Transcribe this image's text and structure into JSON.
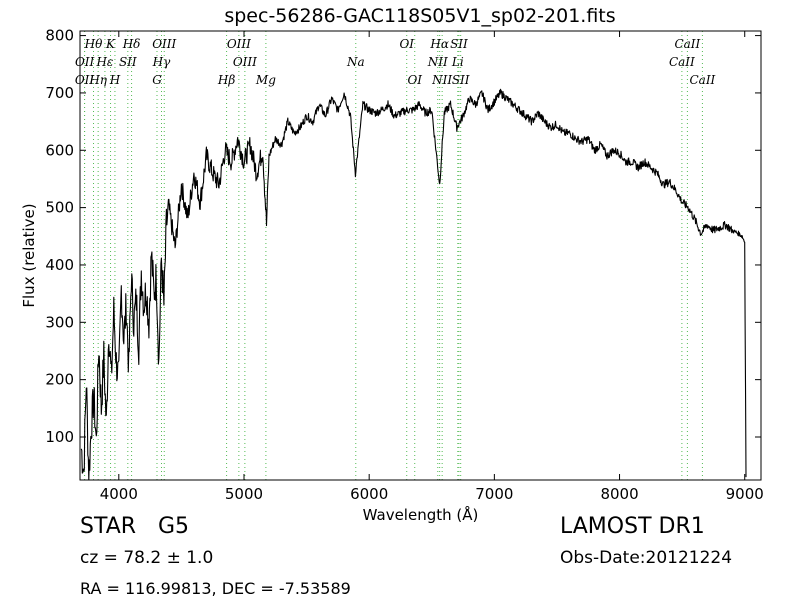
{
  "header": {
    "title": "spec-56286-GAC118S05V1_sp02-201.fits"
  },
  "info": {
    "object_class": "STAR",
    "subclass": "G5",
    "survey": "LAMOST DR1",
    "cz": "cz = 78.2 ± 1.0",
    "obs_date": "Obs-Date:20121224",
    "radec": "RA = 116.99813, DEC = -7.53589"
  },
  "colors": {
    "spectrum": "#000000",
    "line_markers": "#55bb55",
    "axes": "#000000"
  },
  "chart_data": {
    "type": "line",
    "title": "spec-56286-GAC118S05V1_sp02-201.fits",
    "xlabel": "Wavelength (Å)",
    "ylabel": "Flux (relative)",
    "xlim": [
      3690,
      9130
    ],
    "ylim": [
      25,
      808
    ],
    "xticks": [
      4000,
      5000,
      6000,
      7000,
      8000,
      9000
    ],
    "yticks": [
      100,
      200,
      300,
      400,
      500,
      600,
      700,
      800
    ],
    "grid": false,
    "legend": "none",
    "series": [
      {
        "x": [
          3700,
          3720,
          3740,
          3760,
          3780,
          3800,
          3820,
          3840,
          3860,
          3880,
          3900,
          3920,
          3940,
          3960,
          3980,
          4000,
          4020,
          4040,
          4060,
          4080,
          4100,
          4120,
          4140,
          4160,
          4180,
          4200,
          4220,
          4240,
          4260,
          4280,
          4300,
          4320,
          4340,
          4360,
          4380,
          4400,
          4450,
          4500,
          4550,
          4600,
          4650,
          4700,
          4750,
          4800,
          4850,
          4900,
          4950,
          5000,
          5050,
          5100,
          5150,
          5180,
          5200,
          5250,
          5300,
          5350,
          5400,
          5450,
          5500,
          5550,
          5600,
          5650,
          5700,
          5750,
          5800,
          5850,
          5890,
          5950,
          6000,
          6050,
          6100,
          6150,
          6200,
          6250,
          6300,
          6350,
          6400,
          6450,
          6500,
          6563,
          6600,
          6650,
          6700,
          6750,
          6800,
          6850,
          6900,
          6950,
          7000,
          7050,
          7100,
          7150,
          7200,
          7250,
          7300,
          7350,
          7400,
          7450,
          7500,
          7550,
          7600,
          7650,
          7700,
          7750,
          7800,
          7850,
          7900,
          7950,
          8000,
          8050,
          8100,
          8150,
          8200,
          8250,
          8300,
          8350,
          8400,
          8450,
          8500,
          8550,
          8600,
          8650,
          8700,
          8750,
          8800,
          8850,
          8900,
          8950,
          8980,
          9000,
          9010
        ],
        "y": [
          80,
          40,
          200,
          30,
          120,
          170,
          90,
          260,
          150,
          240,
          120,
          290,
          200,
          320,
          230,
          200,
          360,
          270,
          330,
          220,
          380,
          300,
          340,
          260,
          390,
          330,
          360,
          300,
          420,
          350,
          380,
          230,
          410,
          330,
          470,
          500,
          430,
          540,
          480,
          560,
          510,
          590,
          560,
          540,
          600,
          580,
          620,
          580,
          610,
          560,
          600,
          470,
          590,
          620,
          610,
          650,
          630,
          640,
          660,
          650,
          680,
          660,
          690,
          670,
          700,
          660,
          560,
          680,
          670,
          665,
          670,
          680,
          660,
          665,
          670,
          670,
          680,
          665,
          670,
          540,
          665,
          680,
          640,
          660,
          690,
          680,
          700,
          670,
          685,
          700,
          690,
          680,
          670,
          660,
          650,
          665,
          650,
          640,
          645,
          630,
          630,
          620,
          615,
          620,
          600,
          610,
          590,
          600,
          595,
          580,
          580,
          570,
          580,
          570,
          560,
          540,
          545,
          530,
          510,
          500,
          480,
          455,
          470,
          460,
          465,
          470,
          460,
          455,
          450,
          440,
          30
        ]
      }
    ],
    "line_labels": [
      {
        "text": "Hθ",
        "x": 3798
      },
      {
        "text": "K",
        "x": 3934
      },
      {
        "text": "Hδ",
        "x": 4102
      },
      {
        "text": "OIII",
        "x": 4363
      },
      {
        "text": "OIII",
        "x": 4959
      },
      {
        "text": "OI",
        "x": 6300
      },
      {
        "text": "Hα",
        "x": 6563
      },
      {
        "text": "SII",
        "x": 6717
      },
      {
        "text": "CaII",
        "x": 8542
      },
      {
        "text": "OII",
        "x": 3727
      },
      {
        "text": "Hε",
        "x": 3889
      },
      {
        "text": "SII",
        "x": 4072
      },
      {
        "text": "Hγ",
        "x": 4341
      },
      {
        "text": "OIII",
        "x": 5007
      },
      {
        "text": "NII",
        "x": 6548
      },
      {
        "text": "Li",
        "x": 6708
      },
      {
        "text": "CaII",
        "x": 8498
      },
      {
        "text": "Na",
        "x": 5893
      },
      {
        "text": "OII",
        "x": 3726
      },
      {
        "text": "Hη",
        "x": 3835
      },
      {
        "text": "H",
        "x": 3969
      },
      {
        "text": "G",
        "x": 4305
      },
      {
        "text": "Hβ",
        "x": 4861
      },
      {
        "text": "Mg",
        "x": 5175
      },
      {
        "text": "OI",
        "x": 6364
      },
      {
        "text": "NII",
        "x": 6583
      },
      {
        "text": "SII",
        "x": 6731
      },
      {
        "text": "CaII",
        "x": 8662
      }
    ],
    "marker_lines": [
      3726,
      3727,
      3798,
      3835,
      3889,
      3934,
      3969,
      4072,
      4102,
      4305,
      4341,
      4363,
      4861,
      4959,
      5007,
      5175,
      5893,
      6300,
      6364,
      6548,
      6563,
      6583,
      6708,
      6717,
      6731,
      8498,
      8542,
      8662
    ]
  }
}
